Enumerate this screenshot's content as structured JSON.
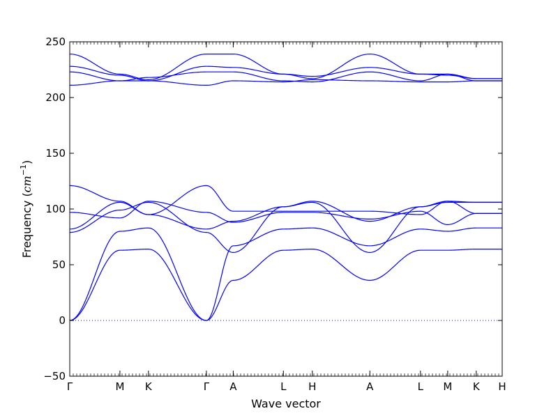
{
  "chart_data": {
    "type": "line",
    "title": "",
    "xlabel": "Wave vector",
    "ylabel_text": "Frequency (",
    "ylabel_unit_base": "cm",
    "ylabel_unit_exp": "−1",
    "ylabel_close": ")",
    "ylim": [
      -50,
      250
    ],
    "yticks": [
      -50,
      0,
      50,
      100,
      150,
      200,
      250
    ],
    "grid": false,
    "zero_line": {
      "style": "dotted",
      "color": "#0000ff"
    },
    "line_color": "#0000ff",
    "x_points": [
      {
        "label": "Γ",
        "x": 0.0
      },
      {
        "label": "M",
        "x": 0.116
      },
      {
        "label": "K",
        "x": 0.182
      },
      {
        "label": "Γ",
        "x": 0.316
      },
      {
        "label": "A",
        "x": 0.378
      },
      {
        "label": "L",
        "x": 0.494
      },
      {
        "label": "H",
        "x": 0.561
      },
      {
        "label": "A",
        "x": 0.694
      },
      {
        "label": "L",
        "x": 0.811
      },
      {
        "label": "M",
        "x": 0.874
      },
      {
        "label": "K",
        "x": 0.94
      },
      {
        "label": "H",
        "x": 1.0
      }
    ],
    "series": [
      {
        "values": [
          0,
          63,
          64,
          0,
          36,
          63,
          64,
          36,
          63,
          63,
          64,
          64
        ]
      },
      {
        "values": [
          0,
          80,
          83,
          0,
          67,
          82,
          83,
          67,
          82,
          80,
          83,
          83
        ]
      },
      {
        "values": [
          79,
          99,
          106,
          79,
          61,
          102,
          106,
          61,
          102,
          106,
          106,
          106
        ]
      },
      {
        "values": [
          82,
          106,
          95,
          82,
          89,
          102,
          107,
          89,
          102,
          107,
          106,
          106
        ]
      },
      {
        "values": [
          97,
          92,
          107,
          97,
          88,
          97,
          97,
          91,
          98,
          86,
          96,
          96
        ]
      },
      {
        "values": [
          121,
          107,
          95,
          121,
          98,
          98,
          98,
          98,
          95,
          107,
          96,
          96
        ]
      },
      {
        "values": [
          211,
          215,
          215,
          211,
          215,
          214,
          216,
          215,
          214,
          214,
          215,
          215
        ]
      },
      {
        "values": [
          223,
          215,
          218,
          223,
          223,
          215,
          214,
          223,
          215,
          221,
          215,
          215
        ]
      },
      {
        "values": [
          228,
          220,
          215,
          228,
          227,
          221,
          219,
          227,
          221,
          220,
          217,
          217
        ]
      },
      {
        "values": [
          239,
          221,
          216,
          239,
          239,
          221,
          217,
          239,
          221,
          221,
          217,
          217
        ]
      }
    ]
  }
}
